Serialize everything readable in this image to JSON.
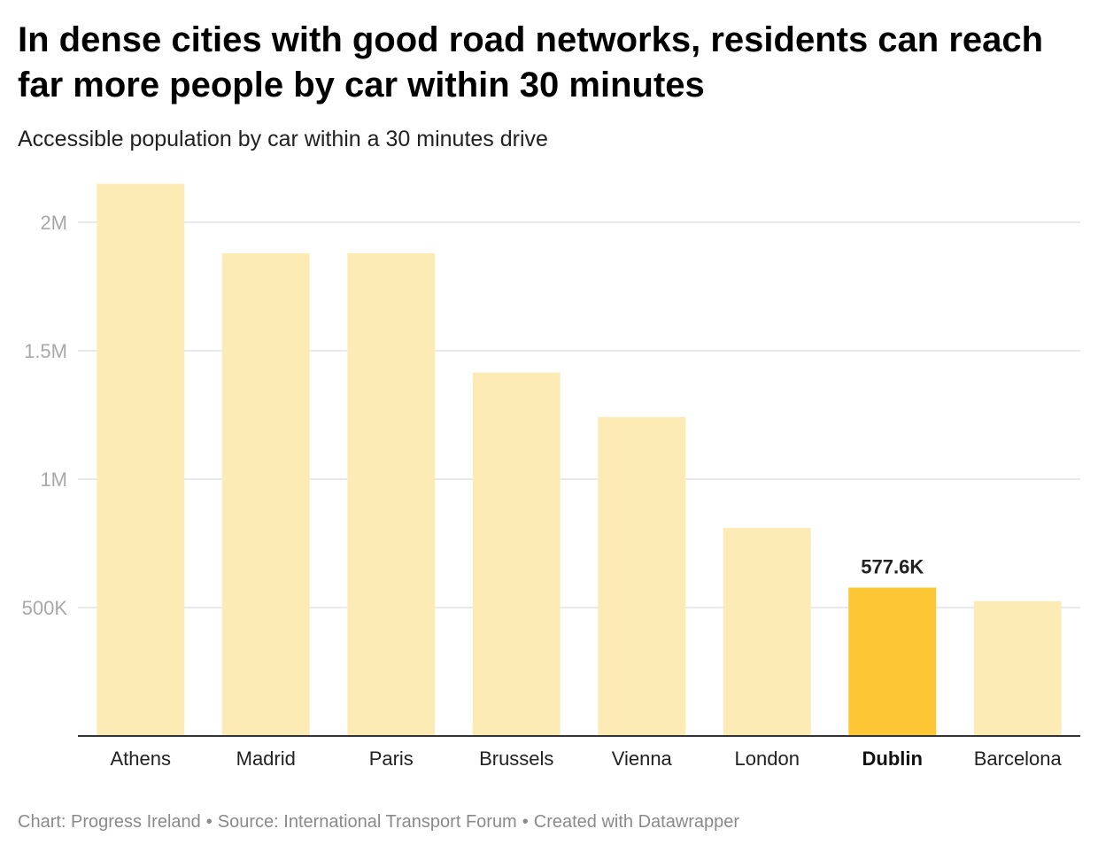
{
  "chart_data": {
    "type": "bar",
    "title": "In dense cities with good road networks, residents can reach far more people by car within 30 minutes",
    "subtitle": "Accessible population by car within a 30 minutes drive",
    "categories": [
      "Athens",
      "Madrid",
      "Paris",
      "Brussels",
      "Vienna",
      "London",
      "Dublin",
      "Barcelona"
    ],
    "values": [
      2150000,
      1880000,
      1880000,
      1415000,
      1242000,
      810000,
      577600,
      525000
    ],
    "highlight": "Dublin",
    "highlight_label": "577.6K",
    "ylim": [
      0,
      2200000
    ],
    "yticks": [
      500000,
      1000000,
      1500000,
      2000000
    ],
    "ytick_labels": [
      "500K",
      "1M",
      "1.5M",
      "2M"
    ],
    "xlabel": "",
    "ylabel": "",
    "grid": true,
    "colors": {
      "bar": "#fdebb5",
      "highlight_bar": "#fcc635",
      "grid": "#e2e2e2",
      "axis": "#333333"
    }
  },
  "footer": {
    "chart_credit": "Chart: Progress Ireland",
    "source": "Source: International Transport Forum",
    "tool": "Created with Datawrapper",
    "separator": "•"
  }
}
